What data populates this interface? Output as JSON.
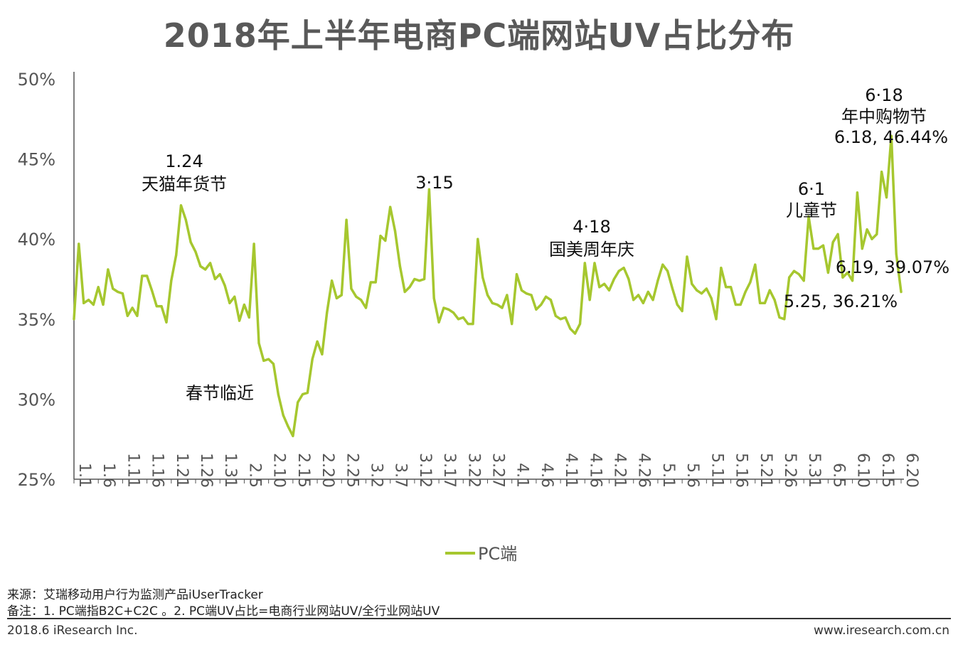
{
  "title": "2018年上半年电商PC端网站UV占比分布",
  "colors": {
    "line": "#a6c72f",
    "axis": "#555555",
    "text": "#222222"
  },
  "chart_data": {
    "type": "line",
    "title": "2018年上半年电商PC端网站UV占比分布",
    "ylim": [
      25,
      50
    ],
    "yticks": [
      "25%",
      "30%",
      "35%",
      "40%",
      "45%",
      "50%"
    ],
    "xtick_labels": [
      "1.1",
      "1.6",
      "1.11",
      "1.16",
      "1.21",
      "1.26",
      "1.31",
      "2.5",
      "2.10",
      "2.15",
      "2.20",
      "2.25",
      "3.2",
      "3.7",
      "3.12",
      "3.17",
      "3.22",
      "3.27",
      "4.1",
      "4.6",
      "4.11",
      "4.16",
      "4.21",
      "4.26",
      "5.1",
      "5.6",
      "5.11",
      "5.16",
      "5.21",
      "5.26",
      "5.31",
      "6.5",
      "6.10",
      "6.15",
      "6.20"
    ],
    "legend": [
      "PC端"
    ],
    "legend_position": "bottom",
    "series": [
      {
        "name": "PC端",
        "values": [
          35.0,
          39.7,
          36.0,
          36.2,
          35.9,
          37.0,
          35.9,
          38.1,
          36.9,
          36.7,
          36.6,
          35.2,
          35.7,
          35.2,
          37.7,
          37.7,
          36.8,
          35.8,
          35.8,
          34.8,
          37.4,
          39.0,
          42.1,
          41.2,
          39.8,
          39.2,
          38.3,
          38.1,
          38.5,
          37.5,
          37.8,
          37.1,
          36.0,
          36.4,
          34.9,
          35.9,
          35.1,
          39.7,
          33.5,
          32.4,
          32.5,
          32.2,
          30.3,
          29.0,
          28.3,
          27.7,
          29.8,
          30.3,
          30.4,
          32.5,
          33.6,
          32.8,
          35.4,
          37.4,
          36.3,
          36.5,
          41.2,
          36.9,
          36.4,
          36.2,
          35.7,
          37.3,
          37.3,
          40.2,
          39.9,
          42.0,
          40.5,
          38.3,
          36.7,
          37.0,
          37.5,
          37.4,
          37.5,
          43.1,
          36.3,
          34.8,
          35.7,
          35.6,
          35.4,
          35.0,
          35.1,
          34.7,
          34.7,
          40.0,
          37.6,
          36.5,
          36.0,
          35.9,
          35.7,
          36.5,
          34.7,
          37.8,
          36.8,
          36.6,
          36.5,
          35.6,
          35.9,
          36.4,
          36.2,
          35.2,
          35.0,
          35.1,
          34.4,
          34.1,
          34.7,
          38.5,
          36.2,
          38.5,
          37.0,
          37.2,
          36.8,
          37.5,
          38.0,
          38.2,
          37.5,
          36.2,
          36.5,
          36.0,
          36.7,
          36.2,
          37.4,
          38.4,
          38.0,
          36.9,
          35.9,
          35.5,
          38.9,
          37.2,
          36.8,
          36.6,
          36.9,
          36.3,
          35.0,
          38.2,
          37.0,
          37.0,
          35.9,
          35.9,
          36.7,
          37.3,
          38.4,
          36.0,
          36.0,
          36.8,
          36.2,
          35.1,
          35.0,
          37.6,
          38.0,
          37.8,
          37.4,
          41.4,
          39.4,
          39.4,
          39.6,
          37.9,
          39.8,
          40.3,
          37.6,
          37.9,
          37.4,
          42.9,
          39.4,
          40.6,
          40.0,
          40.3,
          44.2,
          42.6,
          46.44,
          39.07,
          36.7
        ]
      }
    ],
    "annotations": [
      {
        "date": "1.24",
        "lines": [
          "1.24",
          "天猫年货节"
        ]
      },
      {
        "date": "2.10",
        "lines": [
          "春节临近"
        ]
      },
      {
        "date": "3.15",
        "lines": [
          "3·15"
        ]
      },
      {
        "date": "4.18",
        "lines": [
          "4·18",
          "国美周年庆"
        ]
      },
      {
        "date": "6.1",
        "lines": [
          "6·1",
          "儿童节"
        ]
      },
      {
        "date": "6.18",
        "lines": [
          "6·18",
          "年中购物节"
        ]
      }
    ],
    "data_labels": [
      "6.18, 46.44%",
      "6.19, 39.07%",
      "5.25, 36.21%"
    ]
  },
  "source_line": "来源：艾瑞移动用户行为监测产品iUserTracker",
  "note_line": "备注：1. PC端指B2C+C2C 。2. PC端UV占比=电商行业网站UV/全行业网站UV",
  "footer_left": "2018.6 iResearch Inc.",
  "footer_right": "www.iresearch.com.cn"
}
